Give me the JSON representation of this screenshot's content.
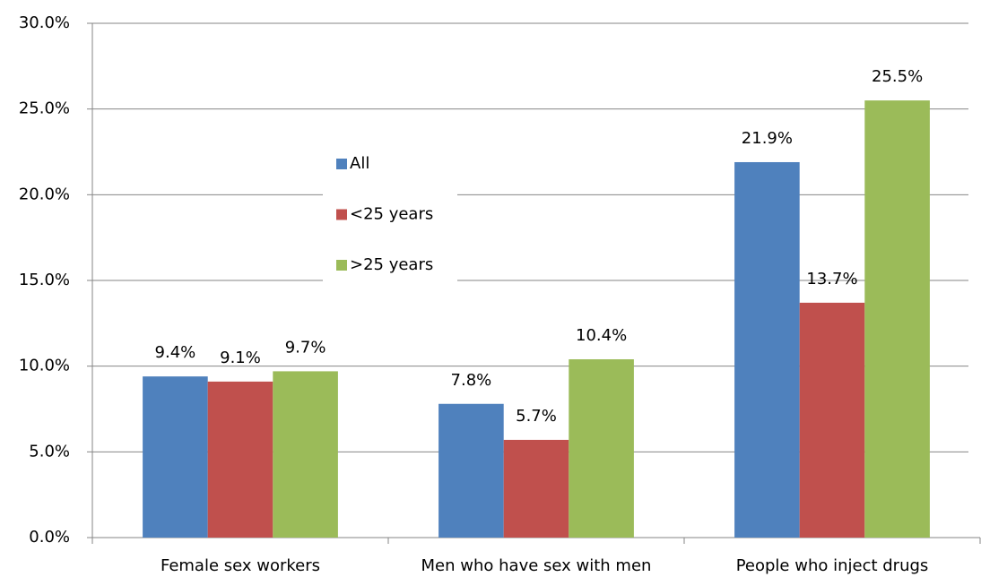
{
  "chart_data": {
    "type": "bar",
    "categories": [
      "Female sex workers",
      "Men who have sex with men",
      "People who inject drugs"
    ],
    "series": [
      {
        "name": "All",
        "color": "#4f81bd",
        "values": [
          9.4,
          7.8,
          21.9
        ],
        "value_labels": [
          "9.4%",
          "7.8%",
          "21.9%"
        ]
      },
      {
        "name": "<25 years",
        "color": "#c0504d",
        "values": [
          9.1,
          5.7,
          13.7
        ],
        "value_labels": [
          "9.1%",
          "5.7%",
          "13.7%"
        ]
      },
      {
        "name": ">25 years",
        "color": "#9bbb59",
        "values": [
          9.7,
          10.4,
          25.5
        ],
        "value_labels": [
          "9.7%",
          "10.4%",
          "25.5%"
        ]
      }
    ],
    "ylim": [
      0,
      30
    ],
    "yticks": [
      {
        "value": 0,
        "label": "0.0%"
      },
      {
        "value": 5,
        "label": "5.0%"
      },
      {
        "value": 10,
        "label": "10.0%"
      },
      {
        "value": 15,
        "label": "15.0%"
      },
      {
        "value": 20,
        "label": "20.0%"
      },
      {
        "value": 25,
        "label": "25.0%"
      },
      {
        "value": 30,
        "label": "30.0%"
      }
    ],
    "grid": true,
    "legend": "center"
  }
}
